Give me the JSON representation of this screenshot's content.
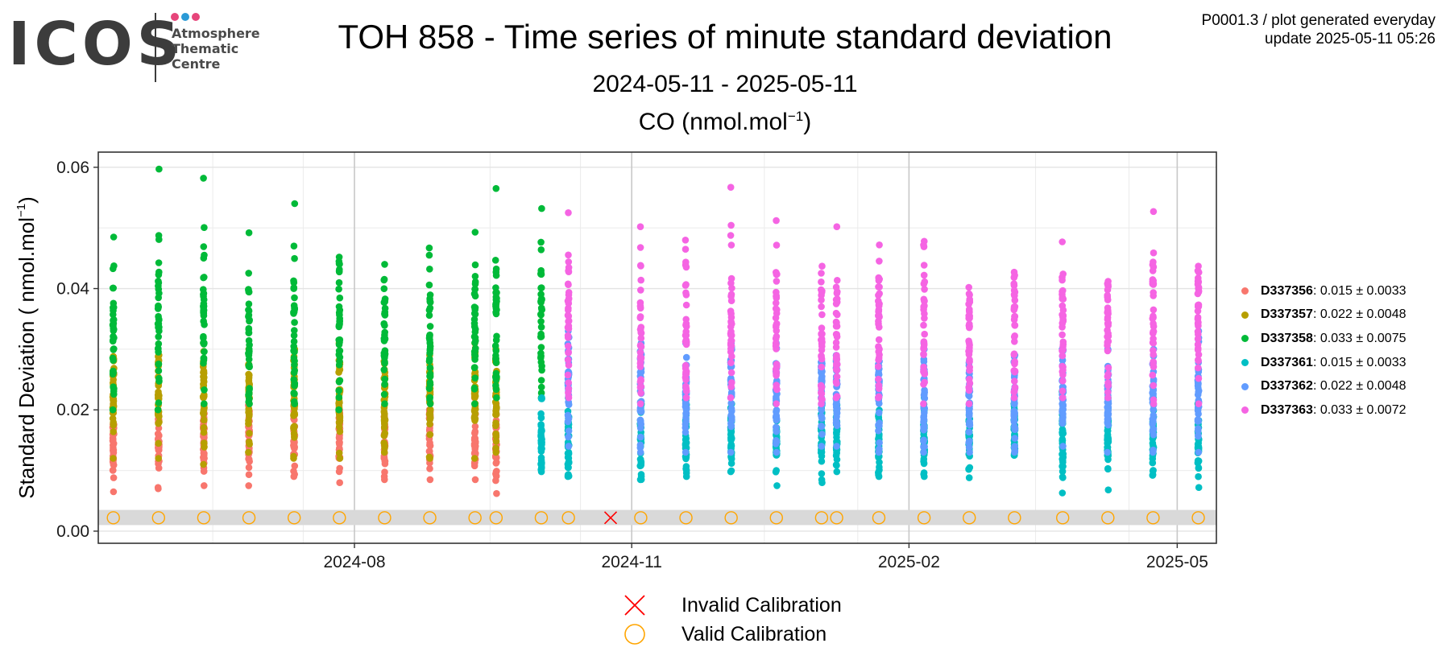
{
  "logo": {
    "wordmark": "ICOS",
    "lines": [
      "Atmosphere",
      "Thematic",
      "Centre"
    ],
    "dot_colors": [
      "#e6457a",
      "#2b9ad6",
      "#e6457a"
    ]
  },
  "header": {
    "title": "TOH 858 - Time series of minute standard deviation",
    "date_range": "2024-05-11 - 2025-05-11",
    "panel_title_text": "CO (nmol.mol",
    "panel_title_exp": "−1",
    "panel_title_close": ")",
    "meta_line1": "P0001.3 / plot generated everyday",
    "meta_line2": "update  2025-05-11 05:26"
  },
  "chart_data": {
    "type": "scatter",
    "xlim": [
      "2024-05-08",
      "2025-05-14"
    ],
    "ylim": [
      -0.002,
      0.0625
    ],
    "x_ticks": [
      "2024-08-01",
      "2024-11-01",
      "2025-02-01",
      "2025-05-01"
    ],
    "x_tick_labels": [
      "2024-08",
      "2024-11",
      "2025-02",
      "2025-05"
    ],
    "y_ticks": [
      0.0,
      0.02,
      0.04,
      0.06
    ],
    "y_tick_labels": [
      "0.00",
      "0.02",
      "0.04",
      "0.06"
    ],
    "ylabel_text": "Standard Deviation ( nmol.mol",
    "ylabel_exp": "−1",
    "ylabel_close": ")",
    "grid": true,
    "band": [
      0.001,
      0.0035
    ],
    "series": [
      {
        "name": "D337356",
        "stat": ": 0.015 ± 0.0033",
        "color": "#f8766d",
        "sd": 0.0033,
        "dates": [
          "2024-05-13",
          "2024-05-28",
          "2024-06-12",
          "2024-06-27",
          "2024-07-12",
          "2024-07-27",
          "2024-08-11",
          "2024-08-26",
          "2024-09-10",
          "2024-09-17"
        ],
        "means": [
          0.014,
          0.0145,
          0.015,
          0.015,
          0.0155,
          0.015,
          0.015,
          0.0155,
          0.015,
          0.0145
        ],
        "maxes": [
          0.021,
          0.02,
          0.02,
          0.022,
          0.021,
          0.02,
          0.019,
          0.02,
          0.022,
          0.021
        ],
        "mins": [
          0.0065,
          0.007,
          0.0075,
          0.0075,
          0.009,
          0.008,
          0.0085,
          0.0085,
          0.0085,
          0.0062
        ]
      },
      {
        "name": "D337357",
        "stat": ": 0.022 ± 0.0048",
        "color": "#b79f00",
        "sd": 0.0048,
        "dates": [
          "2024-05-13",
          "2024-05-28",
          "2024-06-12",
          "2024-06-27",
          "2024-07-12",
          "2024-07-27",
          "2024-08-11",
          "2024-08-26",
          "2024-09-10",
          "2024-09-17"
        ],
        "means": [
          0.022,
          0.022,
          0.022,
          0.022,
          0.022,
          0.022,
          0.022,
          0.022,
          0.022,
          0.022
        ],
        "maxes": [
          0.03,
          0.029,
          0.031,
          0.03,
          0.03,
          0.031,
          0.028,
          0.029,
          0.031,
          0.03
        ],
        "mins": [
          0.012,
          0.012,
          0.011,
          0.013,
          0.012,
          0.012,
          0.013,
          0.012,
          0.012,
          0.013
        ]
      },
      {
        "name": "D337358",
        "stat": ": 0.033 ± 0.0075",
        "color": "#00ba38",
        "sd": 0.0075,
        "dates": [
          "2024-05-13",
          "2024-05-28",
          "2024-06-12",
          "2024-06-27",
          "2024-07-12",
          "2024-07-27",
          "2024-08-11",
          "2024-08-26",
          "2024-09-10",
          "2024-09-17",
          "2024-10-02"
        ],
        "means": [
          0.033,
          0.034,
          0.035,
          0.032,
          0.034,
          0.033,
          0.032,
          0.033,
          0.034,
          0.035,
          0.034
        ],
        "maxes": [
          0.0485,
          0.0597,
          0.0582,
          0.0492,
          0.054,
          0.0452,
          0.044,
          0.0467,
          0.0493,
          0.0565,
          0.0532
        ],
        "mins": [
          0.02,
          0.02,
          0.021,
          0.021,
          0.021,
          0.02,
          0.021,
          0.021,
          0.021,
          0.022,
          0.022
        ]
      },
      {
        "name": "D337361",
        "stat": ": 0.015 ± 0.0033",
        "color": "#00bfc4",
        "sd": 0.0033,
        "dates": [
          "2024-10-02",
          "2024-10-11",
          "2024-11-04",
          "2024-11-19",
          "2024-12-04",
          "2024-12-19",
          "2025-01-03",
          "2025-01-08",
          "2025-01-22",
          "2025-02-06",
          "2025-02-21",
          "2025-03-08",
          "2025-03-24",
          "2025-04-08",
          "2025-04-23",
          "2025-05-08"
        ],
        "means": [
          0.015,
          0.015,
          0.015,
          0.015,
          0.015,
          0.015,
          0.015,
          0.015,
          0.015,
          0.015,
          0.015,
          0.015,
          0.015,
          0.015,
          0.015,
          0.015
        ],
        "maxes": [
          0.022,
          0.022,
          0.021,
          0.022,
          0.021,
          0.021,
          0.022,
          0.022,
          0.022,
          0.022,
          0.021,
          0.021,
          0.023,
          0.022,
          0.022,
          0.021
        ],
        "mins": [
          0.0098,
          0.009,
          0.0085,
          0.009,
          0.0098,
          0.0075,
          0.008,
          0.0098,
          0.009,
          0.009,
          0.0088,
          0.0125,
          0.0063,
          0.0068,
          0.0092,
          0.0072
        ]
      },
      {
        "name": "D337362",
        "stat": ": 0.022 ± 0.0048",
        "color": "#619cff",
        "sd": 0.0048,
        "dates": [
          "2024-10-11",
          "2024-11-04",
          "2024-11-19",
          "2024-12-04",
          "2024-12-19",
          "2025-01-03",
          "2025-01-08",
          "2025-01-22",
          "2025-02-06",
          "2025-02-21",
          "2025-03-08",
          "2025-03-24",
          "2025-04-08",
          "2025-04-23",
          "2025-05-08"
        ],
        "means": [
          0.024,
          0.022,
          0.022,
          0.023,
          0.022,
          0.022,
          0.023,
          0.022,
          0.022,
          0.022,
          0.022,
          0.022,
          0.022,
          0.022,
          0.022
        ],
        "maxes": [
          0.033,
          0.031,
          0.031,
          0.031,
          0.031,
          0.028,
          0.029,
          0.028,
          0.031,
          0.028,
          0.029,
          0.03,
          0.03,
          0.03,
          0.033
        ],
        "mins": [
          0.014,
          0.013,
          0.013,
          0.013,
          0.013,
          0.014,
          0.014,
          0.013,
          0.013,
          0.013,
          0.013,
          0.014,
          0.013,
          0.013,
          0.013
        ]
      },
      {
        "name": "D337363",
        "stat": ": 0.033 ± 0.0072",
        "color": "#f564e3",
        "sd": 0.0072,
        "dates": [
          "2024-10-11",
          "2024-11-04",
          "2024-11-19",
          "2024-12-04",
          "2024-12-19",
          "2025-01-03",
          "2025-01-08",
          "2025-01-22",
          "2025-02-06",
          "2025-02-21",
          "2025-03-08",
          "2025-03-24",
          "2025-04-08",
          "2025-04-23",
          "2025-05-08"
        ],
        "means": [
          0.034,
          0.033,
          0.032,
          0.034,
          0.033,
          0.032,
          0.033,
          0.033,
          0.034,
          0.032,
          0.033,
          0.034,
          0.032,
          0.033,
          0.034
        ],
        "maxes": [
          0.0525,
          0.0502,
          0.048,
          0.0567,
          0.0512,
          0.0437,
          0.0502,
          0.0472,
          0.0478,
          0.0402,
          0.0427,
          0.0477,
          0.0412,
          0.0527,
          0.0437
        ],
        "mins": [
          0.022,
          0.021,
          0.022,
          0.022,
          0.021,
          0.021,
          0.022,
          0.022,
          0.021,
          0.021,
          0.022,
          0.022,
          0.022,
          0.021,
          0.021
        ]
      }
    ],
    "calibrations": {
      "valid_dates": [
        "2024-05-13",
        "2024-05-28",
        "2024-06-12",
        "2024-06-27",
        "2024-07-12",
        "2024-07-27",
        "2024-08-11",
        "2024-08-26",
        "2024-09-10",
        "2024-09-17",
        "2024-10-02",
        "2024-10-11",
        "2024-11-04",
        "2024-11-19",
        "2024-12-04",
        "2024-12-19",
        "2025-01-03",
        "2025-01-08",
        "2025-01-22",
        "2025-02-06",
        "2025-02-21",
        "2025-03-08",
        "2025-03-24",
        "2025-04-08",
        "2025-04-23",
        "2025-05-08"
      ],
      "invalid_dates": [
        "2024-10-25"
      ],
      "y": 0.0022,
      "valid_color": "#ffa500",
      "invalid_color": "#ff0000"
    },
    "calibration_legend": [
      {
        "kind": "invalid",
        "label": "Invalid Calibration"
      },
      {
        "kind": "valid",
        "label": "Valid Calibration"
      }
    ]
  }
}
